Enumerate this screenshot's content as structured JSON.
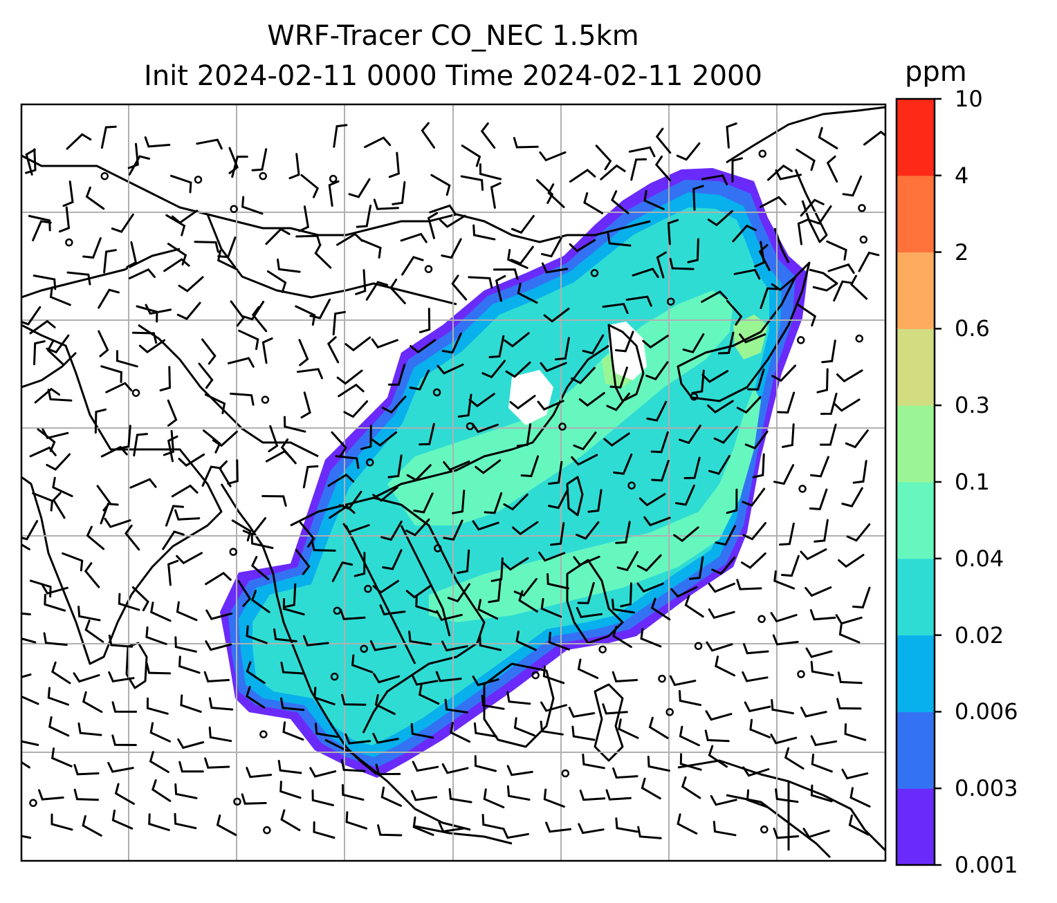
{
  "title": {
    "line1": "WRF-Tracer CO_NEC 1.5km",
    "line2": "Init 2024-02-11 0000 Time 2024-02-11 2000"
  },
  "colorbar": {
    "unit": "ppm",
    "tick_labels": [
      "10",
      "4",
      "2",
      "0.6",
      "0.3",
      "0.1",
      "0.04",
      "0.02",
      "0.006",
      "0.003",
      "0.001"
    ],
    "colors": [
      "#6a2bfa",
      "#3373f3",
      "#08b0ec",
      "#2fdcd4",
      "#66f7bf",
      "#9af695",
      "#d2dc81",
      "#fcab5e",
      "#ff733a",
      "#fd2a17"
    ]
  },
  "map": {
    "graticule": "grey lines",
    "overlay": "wind barbs",
    "basemap": "coastlines and country borders"
  }
}
